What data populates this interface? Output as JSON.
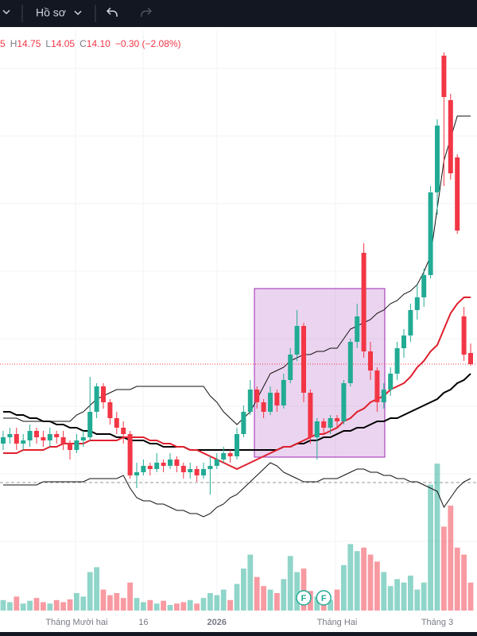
{
  "toolbar": {
    "profile": "Hồ sơ"
  },
  "chart_data": {
    "type": "candlestick",
    "legend": [
      {
        "value": "5"
      },
      {
        "label": "H",
        "value": "14.75"
      },
      {
        "label": "L",
        "value": "14.05"
      },
      {
        "label": "C",
        "value": "14.10"
      },
      {
        "value": "−0.30 (−2.08%)"
      }
    ],
    "categories": [
      null,
      null,
      null,
      null,
      null,
      null,
      null,
      null,
      null,
      null,
      null,
      "Tháng Mười hai",
      null,
      null,
      null,
      null,
      null,
      null,
      null,
      null,
      null,
      "16",
      null,
      null,
      null,
      null,
      null,
      null,
      null,
      null,
      null,
      null,
      "2026",
      null,
      null,
      null,
      null,
      null,
      null,
      null,
      null,
      null,
      null,
      null,
      null,
      null,
      null,
      null,
      null,
      null,
      "Tháng Hai",
      null,
      null,
      null,
      null,
      null,
      null,
      null,
      null,
      null,
      null,
      null,
      null,
      null,
      null,
      "Tháng 3",
      null,
      null,
      null,
      null,
      null
    ],
    "open": [
      11.6,
      11.8,
      11.9,
      11.6,
      11.7,
      12.0,
      11.8,
      11.7,
      11.9,
      11.8,
      11.6,
      11.4,
      11.7,
      11.8,
      12.6,
      13.4,
      12.9,
      12.4,
      12.1,
      11.9,
      10.6,
      10.7,
      10.9,
      10.8,
      11.0,
      10.9,
      11.1,
      10.9,
      10.7,
      10.8,
      10.6,
      10.8,
      10.9,
      11.1,
      11.3,
      11.2,
      11.9,
      12.6,
      13.3,
      12.9,
      12.6,
      13.2,
      12.8,
      13.6,
      14.4,
      15.3,
      13.2,
      11.8,
      12.3,
      12.1,
      12.4,
      12.3,
      13.5,
      14.8,
      17.6,
      14.5,
      13.9,
      12.9,
      13.3,
      13.8,
      14.6,
      15.0,
      15.8,
      16.2,
      16.9,
      19.5,
      23.8,
      22.4,
      20.6,
      15.6,
      14.45
    ],
    "high": [
      12.0,
      12.1,
      12.1,
      11.9,
      12.2,
      12.1,
      12.0,
      12.1,
      12.0,
      12.0,
      11.7,
      11.9,
      12.0,
      13.7,
      13.5,
      13.5,
      13.0,
      12.6,
      12.3,
      12.0,
      11.0,
      11.1,
      11.0,
      11.3,
      11.1,
      11.3,
      11.2,
      11.0,
      11.0,
      10.9,
      11.0,
      11.2,
      11.3,
      11.5,
      11.4,
      12.1,
      12.8,
      13.6,
      13.4,
      13.0,
      13.4,
      13.3,
      13.8,
      14.6,
      15.8,
      15.4,
      13.3,
      12.4,
      12.4,
      12.5,
      12.5,
      13.6,
      14.9,
      16.0,
      17.9,
      14.8,
      14.0,
      13.5,
      14.0,
      14.8,
      15.2,
      16.0,
      16.6,
      17.1,
      19.7,
      21.8,
      23.9,
      22.6,
      20.7,
      15.9,
      14.75
    ],
    "low": [
      11.4,
      11.6,
      11.4,
      11.4,
      11.5,
      11.6,
      11.5,
      11.5,
      11.6,
      11.4,
      11.1,
      11.3,
      11.5,
      11.7,
      12.4,
      12.7,
      12.2,
      11.9,
      11.6,
      10.5,
      10.2,
      10.6,
      10.6,
      10.7,
      10.7,
      10.8,
      10.7,
      10.5,
      10.5,
      10.4,
      10.5,
      10.0,
      10.8,
      11.0,
      11.0,
      11.1,
      11.8,
      12.5,
      12.7,
      12.4,
      12.5,
      12.6,
      12.7,
      13.5,
      14.2,
      12.9,
      11.6,
      11.1,
      11.9,
      11.9,
      12.1,
      12.2,
      13.4,
      14.6,
      14.3,
      13.6,
      12.6,
      12.7,
      13.1,
      13.6,
      14.3,
      14.8,
      15.5,
      15.9,
      16.8,
      18.8,
      19.7,
      19.9,
      18.2,
      14.2,
      14.05
    ],
    "close": [
      11.8,
      11.9,
      11.6,
      11.7,
      12.0,
      11.8,
      11.7,
      11.9,
      11.8,
      11.6,
      11.4,
      11.7,
      11.8,
      12.6,
      13.4,
      12.9,
      12.4,
      12.1,
      11.9,
      10.6,
      10.7,
      10.9,
      10.8,
      11.0,
      10.9,
      11.1,
      10.9,
      10.7,
      10.8,
      10.6,
      10.8,
      10.9,
      11.1,
      11.3,
      11.2,
      11.9,
      12.6,
      13.3,
      12.9,
      12.6,
      13.2,
      12.8,
      13.6,
      14.4,
      15.3,
      13.2,
      11.8,
      12.3,
      12.1,
      12.4,
      12.3,
      13.5,
      14.8,
      15.6,
      14.5,
      13.9,
      12.9,
      13.3,
      13.8,
      14.6,
      15.0,
      15.8,
      16.2,
      16.9,
      19.5,
      21.6,
      22.5,
      20.1,
      18.3,
      14.4,
      14.1
    ],
    "volume": [
      15,
      12,
      20,
      10,
      14,
      18,
      12,
      10,
      15,
      12,
      16,
      25,
      20,
      55,
      62,
      30,
      22,
      25,
      18,
      40,
      18,
      12,
      15,
      10,
      14,
      8,
      10,
      12,
      15,
      10,
      18,
      25,
      22,
      30,
      15,
      38,
      60,
      80,
      48,
      35,
      30,
      25,
      45,
      78,
      55,
      60,
      28,
      20,
      25,
      15,
      30,
      65,
      95,
      85,
      90,
      80,
      70,
      55,
      35,
      45,
      40,
      50,
      30,
      40,
      180,
      210,
      120,
      150,
      90,
      80,
      40
    ],
    "up_color": "#22ab94",
    "down_color": "#f23645",
    "lines": [
      {
        "color": "#000000",
        "values": [
          12.6,
          12.6,
          12.5,
          12.5,
          12.4,
          12.4,
          12.3,
          12.3,
          12.2,
          12.2,
          12.1,
          12.1,
          12.0,
          12.0,
          11.9,
          11.9,
          11.9,
          11.8,
          11.8,
          11.7,
          11.7,
          11.7,
          11.6,
          11.6,
          11.5,
          11.5,
          11.5,
          11.5,
          11.4,
          11.4,
          11.4,
          11.4,
          11.4,
          11.4,
          11.4,
          11.4,
          11.4,
          11.4,
          11.4,
          11.4,
          11.4,
          11.4,
          11.5,
          11.5,
          11.6,
          11.6,
          11.7,
          11.7,
          11.8,
          11.8,
          11.9,
          12.0,
          12.0,
          12.1,
          12.1,
          12.2,
          12.3,
          12.3,
          12.4,
          12.4,
          12.5,
          12.6,
          12.7,
          12.8,
          12.9,
          13.0,
          13.2,
          13.3,
          13.5,
          13.6,
          13.8
        ]
      },
      {
        "color": "#e0202d",
        "values": [
          11.3,
          11.3,
          11.3,
          11.4,
          11.4,
          11.4,
          11.4,
          11.5,
          11.5,
          11.6,
          11.6,
          11.6,
          11.6,
          11.7,
          11.7,
          11.7,
          11.7,
          11.7,
          11.8,
          11.8,
          11.8,
          11.8,
          11.7,
          11.7,
          11.6,
          11.6,
          11.5,
          11.5,
          11.4,
          11.4,
          11.3,
          11.2,
          11.1,
          11.0,
          10.9,
          10.8,
          10.9,
          11.0,
          11.1,
          11.2,
          11.3,
          11.4,
          11.5,
          11.5,
          11.6,
          11.7,
          11.8,
          11.9,
          11.9,
          12.0,
          12.1,
          12.3,
          12.4,
          12.6,
          12.7,
          12.9,
          13.0,
          13.1,
          13.3,
          13.4,
          13.5,
          13.7,
          14.0,
          14.2,
          14.5,
          14.7,
          15.2,
          15.7,
          16.0,
          16.2,
          16.2
        ]
      },
      {
        "color": "#111111",
        "values": [
          12.4,
          12.4,
          12.4,
          12.3,
          12.3,
          12.3,
          12.3,
          12.3,
          12.3,
          12.3,
          12.3,
          12.5,
          12.6,
          12.8,
          13.0,
          13.1,
          13.2,
          13.3,
          13.3,
          13.3,
          13.4,
          13.4,
          13.4,
          13.4,
          13.4,
          13.4,
          13.4,
          13.4,
          13.4,
          13.4,
          13.4,
          13.1,
          12.9,
          12.6,
          12.4,
          12.2,
          12.4,
          12.6,
          13.0,
          13.4,
          13.8,
          13.9,
          14.0,
          14.2,
          14.3,
          14.4,
          14.4,
          14.5,
          14.5,
          14.6,
          14.6,
          14.9,
          15.2,
          15.3,
          15.4,
          15.5,
          15.7,
          15.8,
          16.0,
          16.1,
          16.3,
          16.4,
          16.6,
          17.0,
          17.5,
          19.0,
          20.5,
          21.2,
          21.9,
          21.9,
          21.9
        ]
      },
      {
        "color": "#111111",
        "values": [
          10.3,
          10.3,
          10.3,
          10.3,
          10.3,
          10.3,
          10.4,
          10.4,
          10.4,
          10.4,
          10.4,
          10.4,
          10.4,
          10.5,
          10.5,
          10.5,
          10.5,
          10.5,
          10.6,
          10.2,
          9.9,
          9.8,
          9.8,
          9.7,
          9.7,
          9.6,
          9.5,
          9.5,
          9.4,
          9.4,
          9.3,
          9.4,
          9.6,
          9.7,
          9.9,
          10.0,
          10.2,
          10.4,
          10.6,
          10.8,
          11.0,
          10.9,
          10.7,
          10.6,
          10.5,
          10.4,
          10.4,
          10.4,
          10.5,
          10.5,
          10.5,
          10.6,
          10.7,
          10.8,
          10.8,
          10.7,
          10.7,
          10.6,
          10.6,
          10.5,
          10.5,
          10.4,
          10.4,
          10.3,
          10.2,
          10.1,
          9.6,
          9.9,
          10.2,
          10.4,
          10.5
        ]
      }
    ],
    "events": [
      {
        "index": 45,
        "label": "F"
      },
      {
        "index": 48,
        "label": "F"
      }
    ]
  }
}
